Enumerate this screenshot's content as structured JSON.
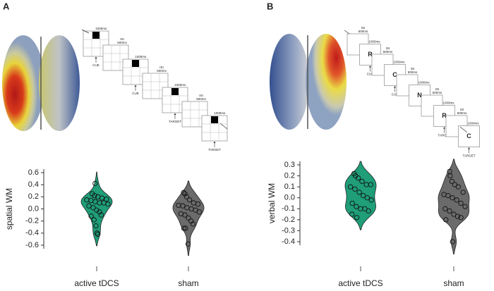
{
  "panel_labels": [
    "A",
    "B"
  ],
  "task_a": {
    "steps": [
      {
        "duration": "1000ms",
        "note": "CUE",
        "stim": true
      },
      {
        "isi": "ISI",
        "duration": "500ms"
      },
      {
        "duration": "1000ms",
        "note": "CUE",
        "stim": true
      },
      {
        "isi": "ISI",
        "duration": "500ms"
      },
      {
        "duration": "1000ms",
        "note": "TARGET",
        "stim": true
      },
      {
        "isi": "ISI",
        "duration": "500ms"
      },
      {
        "duration": "1000ms",
        "note": "TARGET",
        "stim": true
      }
    ]
  },
  "task_b": {
    "steps": [
      {
        "isi": "ISI",
        "duration": "500ms"
      },
      {
        "duration": "1000ms",
        "letter": "R",
        "note": "CUE"
      },
      {
        "isi": "ISI",
        "duration": "500ms"
      },
      {
        "duration": "1000ms",
        "letter": "C",
        "note": "CUE"
      },
      {
        "isi": "ISI",
        "duration": "500ms"
      },
      {
        "duration": "1000ms",
        "letter": "N"
      },
      {
        "isi": "ISI",
        "duration": "500ms"
      },
      {
        "duration": "1000ms",
        "letter": "R",
        "note": "TARGET"
      },
      {
        "isi": "ISI",
        "duration": "500ms"
      },
      {
        "duration": "1000ms",
        "letter": "C",
        "note": "TARGET"
      }
    ]
  },
  "chart_data": [
    {
      "type": "violin",
      "ylabel": "spatial WM",
      "categories": [
        "active tDCS",
        "sham"
      ],
      "ylim": [
        -0.6,
        0.6
      ],
      "yticks": [
        0.6,
        0.4,
        0.2,
        {
          "value": 0,
          "label": "0.0"
        },
        -0.2,
        -0.4,
        -0.6
      ],
      "series": [
        {
          "color": "#1f9e78",
          "values": [
            0.42,
            0.25,
            0.22,
            0.2,
            0.18,
            0.16,
            0.15,
            0.14,
            0.12,
            0.1,
            0.1,
            0.08,
            0.05,
            0.02,
            -0.02,
            -0.05,
            -0.1,
            -0.12,
            -0.18,
            -0.28,
            -0.4,
            -0.42
          ]
        },
        {
          "color": "#6b6b6b",
          "values": [
            0.27,
            0.25,
            0.2,
            0.15,
            0.1,
            0.08,
            0.06,
            0.05,
            0.02,
            0.0,
            -0.02,
            -0.05,
            -0.08,
            -0.1,
            -0.15,
            -0.2,
            -0.25,
            -0.32,
            -0.32,
            -0.58
          ]
        }
      ]
    },
    {
      "type": "violin",
      "ylabel": "verbal WM",
      "categories": [
        "active tDCS",
        "sham"
      ],
      "ylim": [
        -0.4,
        0.3
      ],
      "yticks": [
        0.3,
        0.2,
        0.1,
        {
          "value": 0,
          "label": "0.0"
        },
        -0.1,
        -0.2,
        -0.3,
        -0.4
      ],
      "series": [
        {
          "color": "#1f9e78",
          "values": [
            0.22,
            0.2,
            0.18,
            0.15,
            0.12,
            0.12,
            0.1,
            0.08,
            0.05,
            0.02,
            0.0,
            -0.02,
            -0.05,
            -0.08,
            -0.1,
            -0.1,
            -0.12,
            -0.15,
            -0.18
          ]
        },
        {
          "color": "#6b6b6b",
          "values": [
            0.24,
            0.2,
            0.15,
            0.12,
            0.1,
            0.05,
            0.03,
            0.02,
            0.0,
            -0.02,
            -0.05,
            -0.08,
            -0.1,
            -0.12,
            -0.15,
            -0.17,
            -0.18,
            -0.2,
            -0.4
          ]
        }
      ]
    }
  ]
}
